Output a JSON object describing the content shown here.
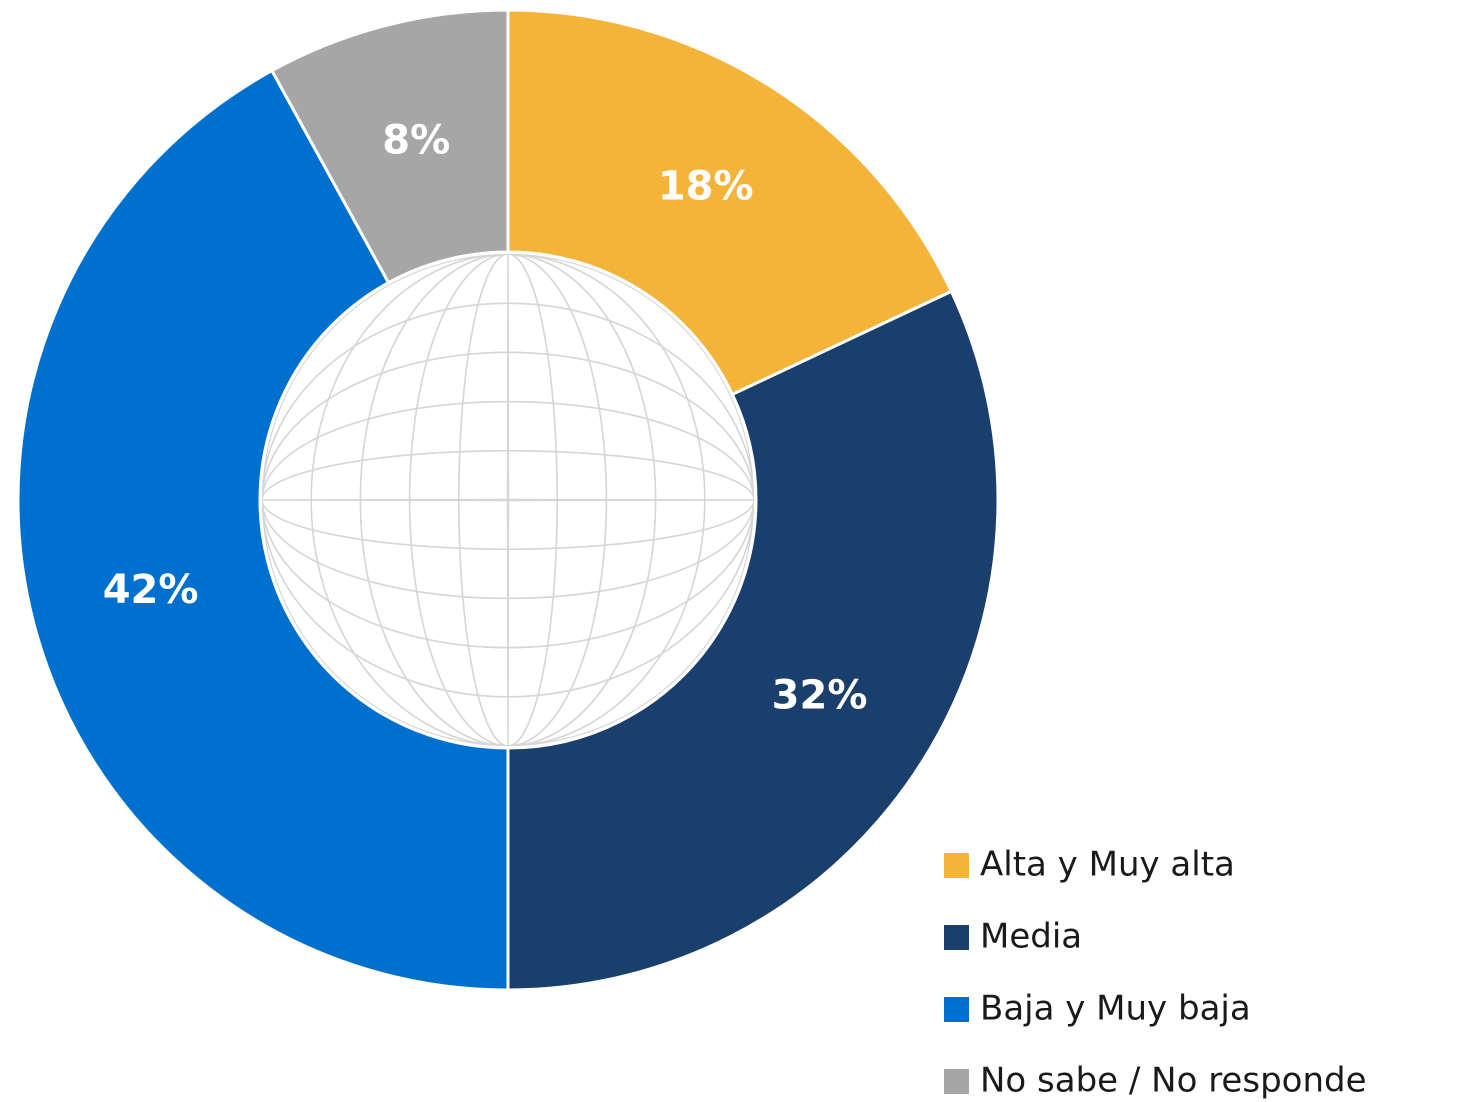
{
  "chart_data": {
    "type": "donut",
    "categories": [
      "Alta y Muy alta",
      "Media",
      "Baja y Muy baja",
      "No sabe / No responde"
    ],
    "values": [
      18,
      32,
      42,
      8
    ],
    "value_labels": [
      "18%",
      "32%",
      "42%",
      "8%"
    ],
    "colors": [
      "#F4B43A",
      "#1B3F6C",
      "#0070CF",
      "#A6A6A6"
    ],
    "legend": "bottom-right"
  }
}
